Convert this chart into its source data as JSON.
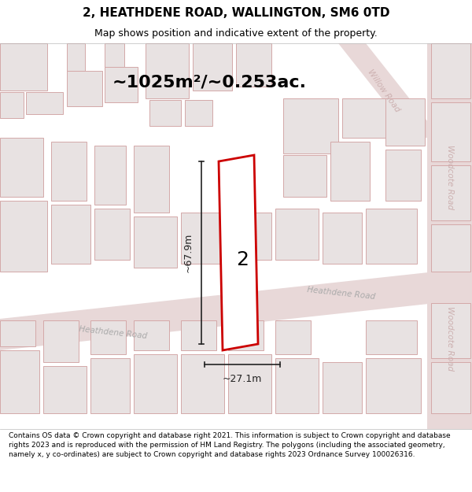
{
  "title_line1": "2, HEATHDENE ROAD, WALLINGTON, SM6 0TD",
  "title_line2": "Map shows position and indicative extent of the property.",
  "area_text": "~1025m²/~0.253ac.",
  "dim_width": "~27.1m",
  "dim_height": "~67.9m",
  "property_label": "2",
  "road_label_heathdene1": "Heathdene Road",
  "road_label_heathdene2": "Heathdene Road",
  "road_label_woodcote": "Woodcote Road",
  "road_label_willow": "Willow Road",
  "footer_text": "Contains OS data © Crown copyright and database right 2021. This information is subject to Crown copyright and database rights 2023 and is reproduced with the permission of HM Land Registry. The polygons (including the associated geometry, namely x, y co-ordinates) are subject to Crown copyright and database rights 2023 Ordnance Survey 100026316.",
  "map_bg": "#f7f2f2",
  "road_fill": "#e8d8d8",
  "building_fill": "#e8e2e2",
  "building_stroke": "#d4a8a8",
  "block_fill": "#dedede",
  "property_fill": "#ffffff",
  "property_stroke": "#cc0000",
  "dim_color": "#222222",
  "road_text_color": "#aaaaaa",
  "woodcote_text_color": "#ccb0b0",
  "header_fontsize": 11,
  "subtitle_fontsize": 9,
  "area_fontsize": 16,
  "label_fontsize": 18,
  "dim_fontsize": 9,
  "road_fontsize": 7.5,
  "footer_fontsize": 6.5
}
